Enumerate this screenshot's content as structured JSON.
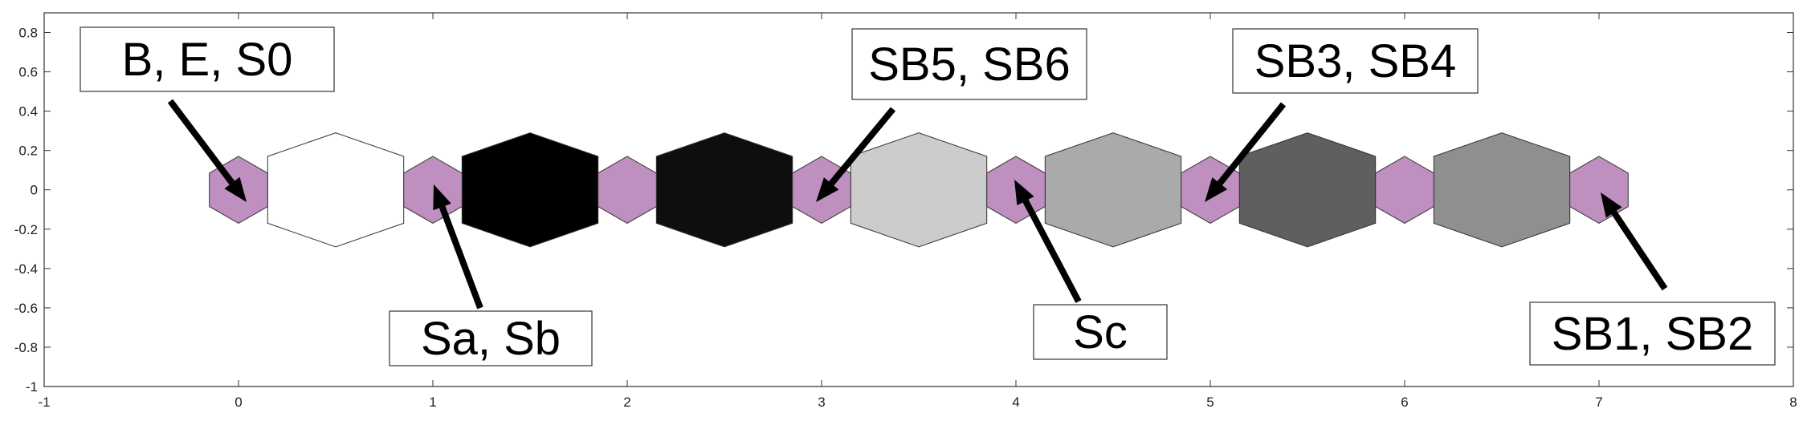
{
  "chart_data": {
    "type": "diagram",
    "xlim": [
      -1,
      8
    ],
    "ylim": [
      -1,
      0.9
    ],
    "x_ticks": [
      "-1",
      "0",
      "1",
      "2",
      "3",
      "4",
      "5",
      "6",
      "7",
      "8"
    ],
    "y_ticks": [
      "0.8",
      "0.6",
      "0.4",
      "0.2",
      "0",
      "-0.2",
      "-0.4",
      "-0.6",
      "-0.8",
      "-1"
    ],
    "grid": false,
    "small_hexagons": {
      "color": "#bf8fbf",
      "centers_x": [
        0,
        1,
        2,
        3,
        4,
        5,
        6,
        7
      ]
    },
    "large_hexagons": [
      {
        "center_x": 0.5,
        "fill": "#ffffff"
      },
      {
        "center_x": 1.5,
        "fill": "#000000"
      },
      {
        "center_x": 2.5,
        "fill": "#0e0e0e"
      },
      {
        "center_x": 3.5,
        "fill": "#cccccc"
      },
      {
        "center_x": 4.5,
        "fill": "#aaaaaa"
      },
      {
        "center_x": 5.5,
        "fill": "#5f5f5f"
      },
      {
        "center_x": 6.5,
        "fill": "#8f8f8f"
      }
    ],
    "annotations": [
      {
        "text": "B, E, S0",
        "target_x": 0.0
      },
      {
        "text": "Sa, Sb",
        "target_x": 1.0
      },
      {
        "text": "SB5, SB6",
        "target_x": 3.0
      },
      {
        "text": "Sc",
        "target_x": 4.0
      },
      {
        "text": "SB3, SB4",
        "target_x": 5.0
      },
      {
        "text": "SB1, SB2",
        "target_x": 7.0
      }
    ]
  }
}
